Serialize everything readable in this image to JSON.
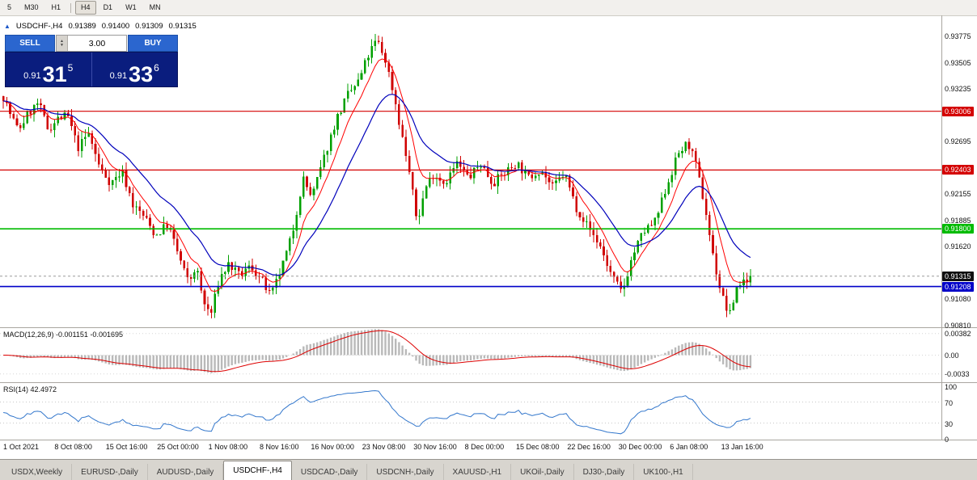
{
  "toolbar": {
    "timeframes": [
      {
        "label": "5",
        "active": false,
        "separator_after": false
      },
      {
        "label": "M30",
        "active": false,
        "separator_after": false
      },
      {
        "label": "H1",
        "active": false,
        "separator_after": true
      },
      {
        "label": "H4",
        "active": true,
        "separator_after": false
      },
      {
        "label": "D1",
        "active": false,
        "separator_after": false
      },
      {
        "label": "W1",
        "active": false,
        "separator_after": false
      },
      {
        "label": "MN",
        "active": false,
        "separator_after": false
      }
    ]
  },
  "symbol_header": {
    "name": "USDCHF-,H4",
    "open": "0.91389",
    "high": "0.91400",
    "low": "0.91309",
    "close": "0.91315"
  },
  "trade_panel": {
    "sell_label": "SELL",
    "buy_label": "BUY",
    "volume": "3.00",
    "sell_price_small": "0.91",
    "sell_price_big": "31",
    "sell_price_sup": "5",
    "buy_price_small": "0.91",
    "buy_price_big": "33",
    "buy_price_sup": "6"
  },
  "price_axis": {
    "plain_labels": [
      0.93775,
      0.93505,
      0.93235,
      0.92695,
      0.92155,
      0.91885,
      0.9162,
      0.9108,
      0.9081
    ],
    "badges": [
      {
        "value": "0.93006",
        "price": 0.93006,
        "color": "#d40000",
        "line": true,
        "dashed": false,
        "width": 1.2
      },
      {
        "value": "0.92403",
        "price": 0.92403,
        "color": "#d40000",
        "line": true,
        "dashed": false,
        "width": 1.2
      },
      {
        "value": "0.91800",
        "price": 0.918,
        "color": "#00bb00",
        "line": true,
        "dashed": false,
        "width": 1.6
      },
      {
        "value": "0.91315",
        "price": 0.91315,
        "color": "#101010",
        "line": false,
        "dashed": true,
        "width": 1
      },
      {
        "value": "0.91208",
        "price": 0.91208,
        "color": "#0000c8",
        "line": true,
        "dashed": false,
        "width": 1.6
      }
    ]
  },
  "chart_data": {
    "type": "candlestick",
    "symbol": "USDCHF",
    "timeframe": "H4",
    "last_price": 0.91315,
    "seed": 7,
    "candle_count": 220,
    "ma_fast_period": 8,
    "ma_slow_period": 21,
    "visible_range": {
      "price_top": 0.9399,
      "price_bottom": 0.9079
    },
    "colors": {
      "up": "#00a000",
      "down": "#d00000",
      "ma_fast": "#ff0000",
      "ma_slow": "#0000bb"
    },
    "price_path": [
      [
        0.0,
        0.9316
      ],
      [
        0.008,
        0.93
      ],
      [
        0.02,
        0.9281
      ],
      [
        0.034,
        0.9299
      ],
      [
        0.047,
        0.9309
      ],
      [
        0.06,
        0.9282
      ],
      [
        0.073,
        0.9293
      ],
      [
        0.086,
        0.9296
      ],
      [
        0.1,
        0.9263
      ],
      [
        0.114,
        0.9278
      ],
      [
        0.129,
        0.9243
      ],
      [
        0.144,
        0.9227
      ],
      [
        0.159,
        0.9239
      ],
      [
        0.174,
        0.9204
      ],
      [
        0.189,
        0.9192
      ],
      [
        0.204,
        0.9173
      ],
      [
        0.22,
        0.9185
      ],
      [
        0.235,
        0.9152
      ],
      [
        0.248,
        0.9124
      ],
      [
        0.258,
        0.9142
      ],
      [
        0.268,
        0.9104
      ],
      [
        0.278,
        0.9092
      ],
      [
        0.289,
        0.9129
      ],
      [
        0.302,
        0.9144
      ],
      [
        0.316,
        0.9131
      ],
      [
        0.331,
        0.9142
      ],
      [
        0.346,
        0.9127
      ],
      [
        0.358,
        0.911
      ],
      [
        0.372,
        0.9138
      ],
      [
        0.386,
        0.9172
      ],
      [
        0.401,
        0.9232
      ],
      [
        0.413,
        0.9212
      ],
      [
        0.429,
        0.9252
      ],
      [
        0.445,
        0.9291
      ],
      [
        0.461,
        0.9317
      ],
      [
        0.476,
        0.9332
      ],
      [
        0.488,
        0.9357
      ],
      [
        0.5,
        0.9374
      ],
      [
        0.512,
        0.9352
      ],
      [
        0.523,
        0.9317
      ],
      [
        0.532,
        0.9281
      ],
      [
        0.543,
        0.924
      ],
      [
        0.554,
        0.9186
      ],
      [
        0.565,
        0.9222
      ],
      [
        0.576,
        0.9237
      ],
      [
        0.591,
        0.9227
      ],
      [
        0.607,
        0.9247
      ],
      [
        0.623,
        0.9232
      ],
      [
        0.639,
        0.9247
      ],
      [
        0.655,
        0.9227
      ],
      [
        0.671,
        0.9237
      ],
      [
        0.687,
        0.9248
      ],
      [
        0.703,
        0.9232
      ],
      [
        0.719,
        0.9242
      ],
      [
        0.735,
        0.9222
      ],
      [
        0.751,
        0.9237
      ],
      [
        0.767,
        0.9202
      ],
      [
        0.783,
        0.9182
      ],
      [
        0.799,
        0.9162
      ],
      [
        0.814,
        0.9132
      ],
      [
        0.828,
        0.9114
      ],
      [
        0.842,
        0.9152
      ],
      [
        0.857,
        0.9177
      ],
      [
        0.873,
        0.9187
      ],
      [
        0.889,
        0.9227
      ],
      [
        0.904,
        0.9258
      ],
      [
        0.917,
        0.9268
      ],
      [
        0.928,
        0.9242
      ],
      [
        0.939,
        0.9203
      ],
      [
        0.95,
        0.9152
      ],
      [
        0.961,
        0.9113
      ],
      [
        0.972,
        0.909
      ],
      [
        0.982,
        0.9121
      ],
      [
        1.0,
        0.9132
      ]
    ]
  },
  "macd": {
    "label": "MACD(12,26,9)",
    "value_main": "-0.001151",
    "value_signal": "-0.001695",
    "axis": [
      "0.00382",
      "0.00",
      "-0.0033"
    ],
    "axis_values": [
      0.00382,
      0,
      -0.0033
    ],
    "histogram_color": "#b9b9b9",
    "signal_color": "#dd0000"
  },
  "rsi": {
    "label": "RSI(14)",
    "value": "42.4972",
    "axis": [
      "100",
      "70",
      "30",
      "0"
    ],
    "axis_values": [
      100,
      70,
      30,
      0
    ],
    "levels": [
      70,
      30
    ],
    "line_color": "#3377cc"
  },
  "time_axis": {
    "labels": [
      "1 Oct 2021",
      "8 Oct 08:00",
      "15 Oct 16:00",
      "25 Oct 00:00",
      "1 Nov 08:00",
      "8 Nov 16:00",
      "16 Nov 00:00",
      "23 Nov 08:00",
      "30 Nov 16:00",
      "8 Dec 00:00",
      "15 Dec 08:00",
      "22 Dec 16:00",
      "30 Dec 00:00",
      "6 Jan 08:00",
      "13 Jan 16:00"
    ]
  },
  "tabbar": {
    "tabs": [
      {
        "label": "USDX,Weekly",
        "active": false
      },
      {
        "label": "EURUSD-,Daily",
        "active": false
      },
      {
        "label": "AUDUSD-,Daily",
        "active": false
      },
      {
        "label": "USDCHF-,H4",
        "active": true
      },
      {
        "label": "USDCAD-,Daily",
        "active": false
      },
      {
        "label": "USDCNH-,Daily",
        "active": false
      },
      {
        "label": "XAUUSD-,H1",
        "active": false
      },
      {
        "label": "UKOil-,Daily",
        "active": false
      },
      {
        "label": "DJ30-,Daily",
        "active": false
      },
      {
        "label": "UK100-,H1",
        "active": false
      }
    ]
  }
}
